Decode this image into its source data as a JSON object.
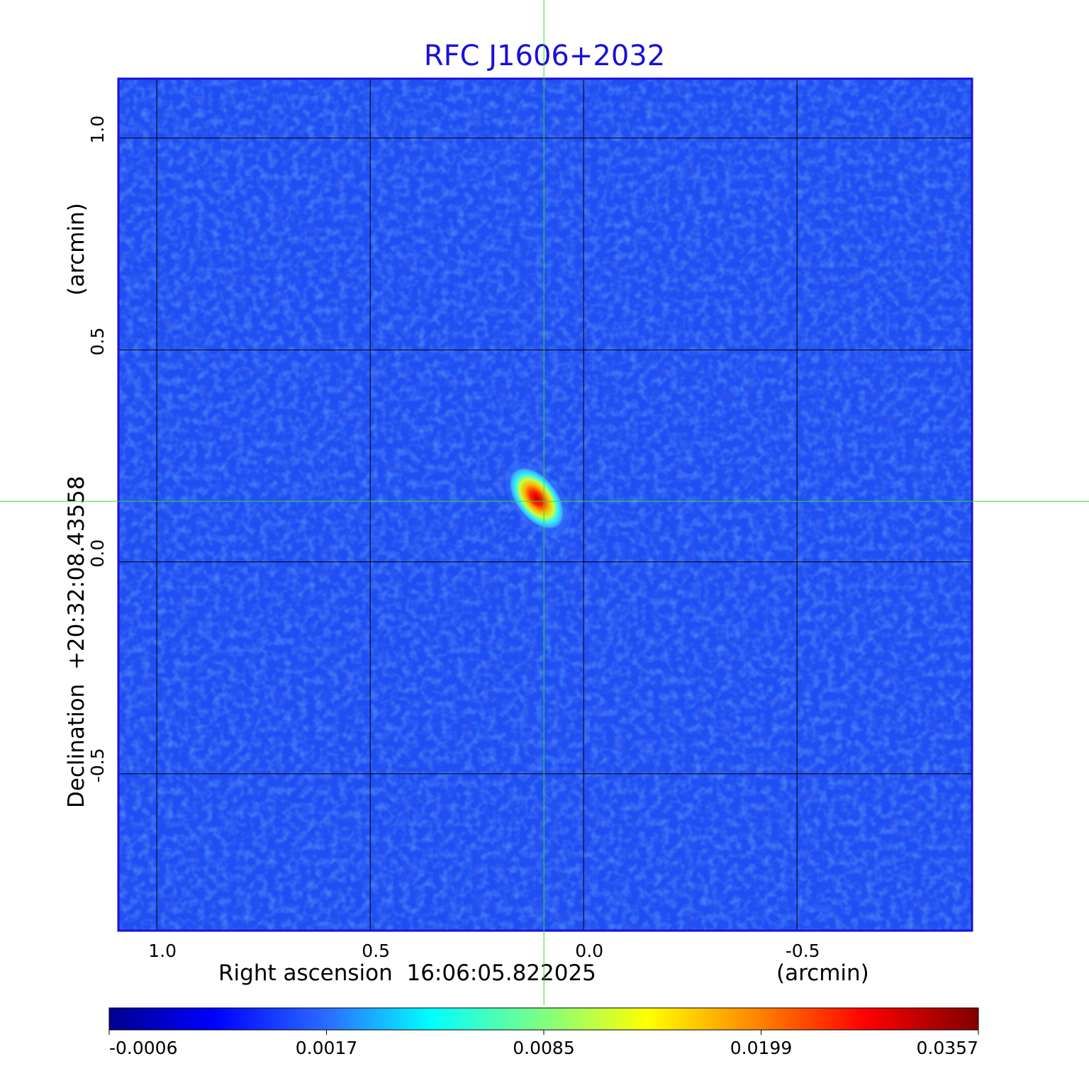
{
  "chart_data": {
    "type": "heatmap",
    "title": "RFC J1606+2032",
    "xlabel": "Right ascension  16:06:05.822025",
    "xlabel_unit": "(arcmin)",
    "ylabel": "Declination  +20:32:08.43558",
    "ylabel_unit": "(arcmin)",
    "xlim": [
      1.09,
      -0.91
    ],
    "ylim": [
      -0.87,
      1.14
    ],
    "x_ticks": [
      {
        "value": 1.0,
        "label": "1.0"
      },
      {
        "value": 0.5,
        "label": "0.5"
      },
      {
        "value": 0.0,
        "label": "0.0"
      },
      {
        "value": -0.5,
        "label": "-0.5"
      }
    ],
    "y_ticks": [
      {
        "value": 1.0,
        "label": "1.0"
      },
      {
        "value": 0.5,
        "label": "0.5"
      },
      {
        "value": 0.0,
        "label": "0.0"
      },
      {
        "value": -0.5,
        "label": "-0.5"
      }
    ],
    "grid": true,
    "crosshair": {
      "x": 0.093,
      "y": 0.143,
      "color": "#33dd33"
    },
    "source": {
      "x": 0.11,
      "y": 0.15,
      "peak": 0.0357
    },
    "colorbar": {
      "position": "bottom",
      "colormap": "jet",
      "tick_labels": [
        "-0.0006",
        "0.0017",
        "0.0085",
        "0.0199",
        "0.0357"
      ]
    },
    "colors": {
      "frame": "#1a10d8",
      "background_field": "#1f4ef2",
      "grid": "#000000",
      "title": "#1a10d8"
    }
  }
}
